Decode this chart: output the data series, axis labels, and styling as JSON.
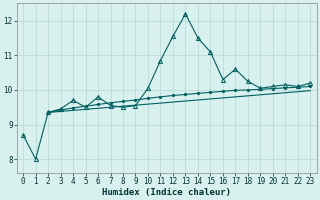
{
  "xlabel": "Humidex (Indice chaleur)",
  "bg_color": "#d8f0ee",
  "grid_color": "#b8dedd",
  "line_color": "#006060",
  "ylim": [
    7.6,
    12.5
  ],
  "xlim": [
    -0.5,
    23.5
  ],
  "yticks": [
    8,
    9,
    10,
    11,
    12
  ],
  "xticks": [
    0,
    1,
    2,
    3,
    4,
    5,
    6,
    7,
    8,
    9,
    10,
    11,
    12,
    13,
    14,
    15,
    16,
    17,
    18,
    19,
    20,
    21,
    22,
    23
  ],
  "line1_x": [
    0,
    1,
    2,
    3,
    4,
    5,
    6,
    7,
    8,
    9,
    10,
    11,
    12,
    13,
    14,
    15,
    16,
    17,
    18,
    19,
    20,
    21,
    22,
    23
  ],
  "line1_y": [
    8.7,
    8.0,
    9.35,
    9.45,
    9.7,
    9.5,
    9.8,
    9.55,
    9.5,
    9.55,
    10.05,
    10.85,
    11.55,
    12.2,
    11.5,
    11.1,
    10.3,
    10.6,
    10.25,
    10.05,
    10.1,
    10.15,
    10.1,
    10.2
  ],
  "line2_x": [
    2,
    3,
    4,
    5,
    6,
    7,
    8,
    9,
    10,
    11,
    12,
    13,
    14,
    15,
    16,
    17,
    18,
    19,
    20,
    21,
    22,
    23
  ],
  "line2_y": [
    9.35,
    9.42,
    9.48,
    9.53,
    9.58,
    9.63,
    9.67,
    9.71,
    9.76,
    9.8,
    9.84,
    9.87,
    9.9,
    9.93,
    9.96,
    9.99,
    10.0,
    10.02,
    10.04,
    10.06,
    10.08,
    10.1
  ],
  "line3_x": [
    2,
    3,
    4,
    5,
    6,
    7,
    8,
    9,
    10,
    11,
    12,
    13,
    14,
    15,
    16,
    17,
    18,
    19,
    20,
    21,
    22,
    23
  ],
  "line3_y": [
    9.35,
    9.38,
    9.41,
    9.44,
    9.47,
    9.5,
    9.53,
    9.56,
    9.59,
    9.62,
    9.65,
    9.68,
    9.71,
    9.74,
    9.77,
    9.8,
    9.83,
    9.86,
    9.89,
    9.92,
    9.95,
    9.98
  ]
}
